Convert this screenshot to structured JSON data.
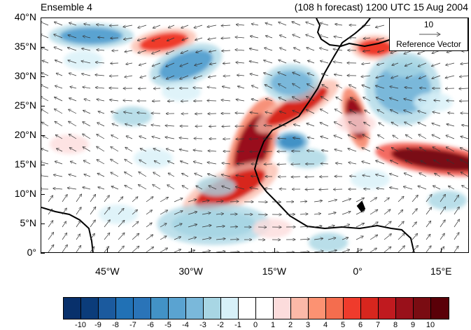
{
  "header": {
    "ensemble_label": "Ensemble 4",
    "forecast_label": "(108 h forecast) 1200 UTC 15 Aug 2004"
  },
  "axes": {
    "lat_ticks": [
      "40°N",
      "35°N",
      "30°N",
      "25°N",
      "20°N",
      "15°N",
      "10°N",
      "5°N",
      "0°"
    ],
    "lon_ticks": [
      "45°W",
      "30°W",
      "15°W",
      "0°",
      "15°E"
    ]
  },
  "reference_vector": {
    "magnitude": "10",
    "label": "Reference Vector"
  },
  "colorbar": {
    "labels": [
      "-10",
      "-9",
      "-8",
      "-7",
      "-6",
      "-5",
      "-4",
      "-3",
      "-2",
      "-1",
      "0",
      "1",
      "2",
      "3",
      "4",
      "5",
      "6",
      "7",
      "8",
      "9",
      "10"
    ],
    "colors": [
      "#08306b",
      "#0b3c7a",
      "#1b5a9e",
      "#2171b5",
      "#2a74b8",
      "#4292c6",
      "#5aa3d1",
      "#7ab8da",
      "#a8d6e4",
      "#d7f0f8",
      "#ffffff",
      "#ffffff",
      "#fcdcdc",
      "#fbb9a8",
      "#fc9272",
      "#f46d4e",
      "#ef3b2c",
      "#d7261e",
      "#c01a1f",
      "#99101a",
      "#7a0c12",
      "#5a0008"
    ]
  },
  "chart_data": {
    "type": "heatmap",
    "title": "",
    "lat_range": [
      0,
      40
    ],
    "lon_range": [
      -57,
      20
    ],
    "colorbar_range": [
      -10,
      10
    ],
    "features": [
      {
        "kind": "positive",
        "lon": -19,
        "lat": 18,
        "value": 8
      },
      {
        "kind": "positive",
        "lon": -23,
        "lat": 11,
        "value": 6
      },
      {
        "kind": "positive",
        "lon": -11,
        "lat": 25,
        "value": 6
      },
      {
        "kind": "positive",
        "lon": -0.5,
        "lat": 23,
        "value": 8
      },
      {
        "kind": "positive",
        "lon": 14,
        "lat": 16,
        "value": 9
      },
      {
        "kind": "positive",
        "lon": 3,
        "lat": 35,
        "value": 5
      },
      {
        "kind": "positive",
        "lon": -35,
        "lat": 36,
        "value": 5
      },
      {
        "kind": "negative",
        "lon": -48,
        "lat": 37,
        "value": -4
      },
      {
        "kind": "negative",
        "lon": -31,
        "lat": 32,
        "value": -4
      },
      {
        "kind": "negative",
        "lon": -12,
        "lat": 29,
        "value": -3
      },
      {
        "kind": "negative",
        "lon": -12,
        "lat": 19,
        "value": -5
      },
      {
        "kind": "negative",
        "lon": 8,
        "lat": 28,
        "value": -3
      },
      {
        "kind": "negative",
        "lon": -26,
        "lat": 5,
        "value": -2
      }
    ]
  }
}
